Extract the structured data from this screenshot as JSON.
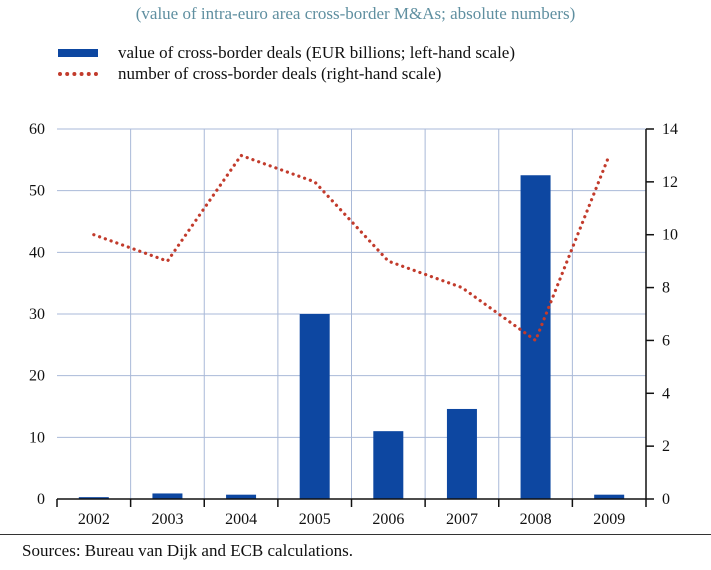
{
  "chart_data": {
    "type": "bar",
    "subtitle": "(value of intra-euro area cross-border M&As; absolute numbers)",
    "categories": [
      "2002",
      "2003",
      "2004",
      "2005",
      "2006",
      "2007",
      "2008",
      "2009"
    ],
    "series": [
      {
        "name": "value of cross-border deals (EUR billions; left-hand scale)",
        "type": "bar",
        "axis": "left",
        "color": "#0d47a1",
        "values": [
          0.3,
          0.9,
          0.7,
          30,
          11,
          14.6,
          52.5,
          0.7
        ]
      },
      {
        "name": "number of cross-border deals (right-hand scale)",
        "type": "line",
        "axis": "right",
        "style": "dotted",
        "color": "#c23b2c",
        "values": [
          10,
          9,
          13,
          12,
          9,
          8,
          6,
          13
        ]
      }
    ],
    "y_left": {
      "min": 0,
      "max": 60,
      "ticks": [
        0,
        10,
        20,
        30,
        40,
        50,
        60
      ]
    },
    "y_right": {
      "min": 0,
      "max": 14,
      "ticks": [
        0,
        2,
        4,
        6,
        8,
        10,
        12,
        14
      ]
    },
    "grid": true,
    "legend_position": "top-left"
  },
  "source": "Sources: Bureau van Dijk and ECB calculations."
}
